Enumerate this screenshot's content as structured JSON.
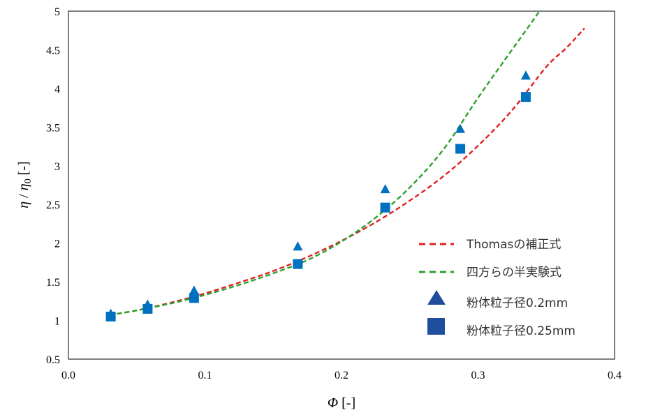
{
  "chart_data": {
    "type": "scatter",
    "xlim": [
      0.0,
      0.4
    ],
    "ylim": [
      0.5,
      5.0
    ],
    "x_ticks": [
      "0.0",
      "0.1",
      "0.2",
      "0.3",
      "0.4"
    ],
    "y_ticks": [
      "0.5",
      "1",
      "1.5",
      "2",
      "2.5",
      "3",
      "3.5",
      "4",
      "4.5",
      "5"
    ],
    "xlabel_main": "Φ",
    "xlabel_unit": " [-]",
    "ylabel_eta1": "η",
    "ylabel_slash": " / ",
    "ylabel_eta2": "η",
    "ylabel_sub": "0",
    "ylabel_unit": " [-]",
    "grid": false,
    "legend_position": "lower-right",
    "series": [
      {
        "name": "Thomasの補正式",
        "kind": "dashed-line",
        "color": "#e02020",
        "x": [
          0.03,
          0.05,
          0.075,
          0.1,
          0.125,
          0.15,
          0.175,
          0.2,
          0.225,
          0.25,
          0.275,
          0.3,
          0.325,
          0.35,
          0.365,
          0.378
        ],
        "y": [
          1.07,
          1.13,
          1.23,
          1.35,
          1.49,
          1.64,
          1.82,
          2.03,
          2.27,
          2.55,
          2.87,
          3.26,
          3.72,
          4.28,
          4.53,
          4.78
        ]
      },
      {
        "name": "四方らの半実験式",
        "kind": "dashed-line",
        "color": "#2ca02c",
        "x": [
          0.03,
          0.05,
          0.075,
          0.1,
          0.125,
          0.15,
          0.175,
          0.2,
          0.225,
          0.25,
          0.275,
          0.3,
          0.32,
          0.335,
          0.345
        ],
        "y": [
          1.07,
          1.13,
          1.22,
          1.33,
          1.46,
          1.61,
          1.78,
          2.02,
          2.33,
          2.72,
          3.22,
          3.88,
          4.38,
          4.75,
          5.0
        ]
      },
      {
        "name": "粉体粒子径0.2mm",
        "kind": "triangle",
        "color": "#0070c0",
        "x": [
          0.031,
          0.058,
          0.092,
          0.168,
          0.232,
          0.287,
          0.335
        ],
        "y": [
          1.08,
          1.2,
          1.38,
          1.95,
          2.69,
          3.47,
          4.16
        ]
      },
      {
        "name": "粉体粒子径0.25mm",
        "kind": "square",
        "color": "#0070c0",
        "x": [
          0.031,
          0.058,
          0.092,
          0.168,
          0.232,
          0.287,
          0.335
        ],
        "y": [
          1.05,
          1.15,
          1.29,
          1.73,
          2.46,
          3.22,
          3.89
        ]
      }
    ]
  },
  "legend": {
    "item1": "Thomasの補正式",
    "item2": "四方らの半実験式",
    "item3": "粉体粒子径0.2mm",
    "item4": "粉体粒子径0.25mm",
    "line_color_1": "#e02020",
    "line_color_2": "#2ca02c",
    "marker_color_legend": "#1f4e9c"
  }
}
